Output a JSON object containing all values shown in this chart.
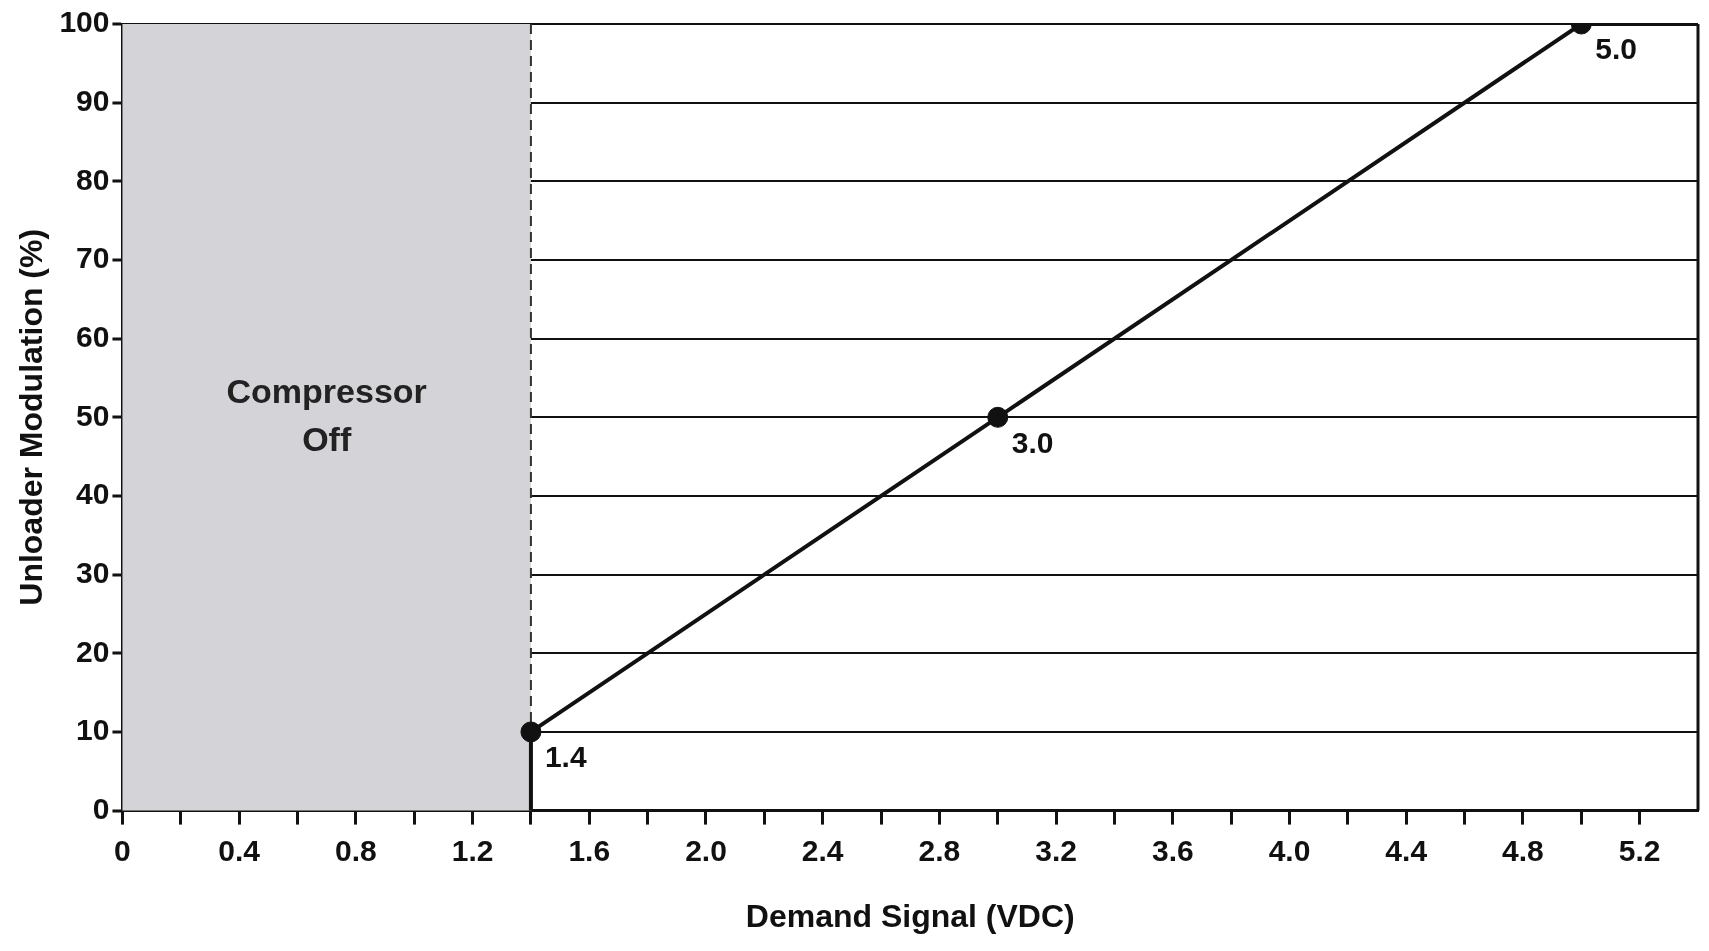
{
  "chart_data": {
    "type": "line",
    "xlabel": "Demand Signal (VDC)",
    "ylabel": "Unloader Modulation (%)",
    "xlim": [
      0,
      5.4
    ],
    "ylim": [
      0,
      100
    ],
    "xticks": [
      0,
      {
        "value": 0.2,
        "label": null
      },
      0.4,
      {
        "value": 0.6,
        "label": null
      },
      0.8,
      {
        "value": 1,
        "label": null
      },
      1.2,
      {
        "value": 1.4,
        "label": null
      },
      1.6,
      {
        "value": 1.8,
        "label": null
      },
      {
        "value": 2,
        "label": "2.0"
      },
      {
        "value": 2.2,
        "label": null
      },
      2.4,
      {
        "value": 2.6,
        "label": null
      },
      2.8,
      {
        "value": 3,
        "label": null
      },
      3.2,
      {
        "value": 3.4,
        "label": null
      },
      3.6,
      {
        "value": 3.8,
        "label": null
      },
      {
        "value": 4,
        "label": "4.0"
      },
      {
        "value": 4.2,
        "label": null
      },
      4.4,
      {
        "value": 4.6,
        "label": null
      },
      4.8,
      {
        "value": 5,
        "label": null
      },
      5.2
    ],
    "yticks": [
      0,
      10,
      20,
      30,
      40,
      50,
      60,
      70,
      80,
      90,
      100
    ],
    "grid": "y",
    "legend": false,
    "series": [
      {
        "color": "#111111",
        "x": [
          1.4,
          1.4,
          3.0,
          5.0,
          5.4
        ],
        "values": [
          0,
          10,
          50,
          100,
          100
        ],
        "marker": "none",
        "line_style": "solid"
      },
      {
        "type": "scatter",
        "color": "#111111",
        "x": [
          1.4,
          3.0,
          5.0
        ],
        "values": [
          10,
          50,
          100
        ],
        "marker": "circle"
      }
    ],
    "annotations": [
      {
        "text": "1.4",
        "x": 1.4,
        "y": 10
      },
      {
        "text": "3.0",
        "x": 3.0,
        "y": 50
      },
      {
        "text": "5.0",
        "x": 5.0,
        "y": 100
      }
    ],
    "bands": [
      {
        "axis": "x",
        "from": 0,
        "to": 1.4,
        "label": "Compressor Off",
        "color": "#d4d3d8"
      }
    ],
    "ref_lines": [
      {
        "axis": "x",
        "value": 1.4,
        "line_style": "dashed",
        "color": "#333333"
      }
    ]
  }
}
